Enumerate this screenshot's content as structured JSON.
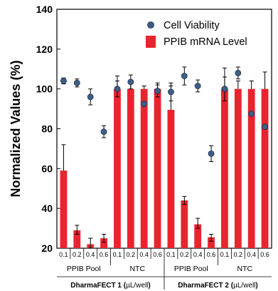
{
  "chart_data": {
    "type": "bar",
    "ylabel": "Normalized Values (%)",
    "ylim": [
      20,
      140
    ],
    "yticks": [
      "20",
      "40",
      "60",
      "80",
      "100",
      "120",
      "140"
    ],
    "categories": [
      "0.1",
      "0.2",
      "0.4",
      "0.6",
      "0.1",
      "0.2",
      "0.4",
      "0.6",
      "0.1",
      "0.2",
      "0.4",
      "0.6",
      "0.1",
      "0.2",
      "0.4",
      "0.6"
    ],
    "groups": [
      {
        "label": "PPIB Pool",
        "super": 0
      },
      {
        "label": "NTC",
        "super": 0
      },
      {
        "label": "PPIB Pool",
        "super": 1
      },
      {
        "label": "NTC",
        "super": 1
      }
    ],
    "super_groups": [
      {
        "prefix": "DharmaFECT 1 (",
        "unit": "µL/well",
        "suffix": ")"
      },
      {
        "prefix": "DharmaFECT 2 (",
        "unit": "µL/well",
        "suffix": ")"
      }
    ],
    "series": [
      {
        "name": "PPIB mRNA Level",
        "kind": "bar",
        "color": "#e8252f",
        "values": [
          59,
          29,
          22,
          25,
          100,
          100,
          100,
          100,
          89.5,
          44,
          32,
          25.5,
          100,
          100,
          100,
          100
        ],
        "err_high": [
          13,
          2.5,
          3,
          2,
          6.5,
          4,
          1.5,
          3,
          12,
          2,
          3,
          1.5,
          10.5,
          4,
          4,
          8.5
        ],
        "err_low": [
          0,
          2,
          2,
          2,
          0,
          0,
          0,
          0,
          0,
          2,
          2,
          2,
          0,
          0,
          0,
          0
        ]
      },
      {
        "name": "Cell Viability",
        "kind": "marker",
        "color": "#3d5f87",
        "values": [
          104,
          103,
          96,
          78.5,
          100,
          103.5,
          92.5,
          99,
          98.5,
          106.5,
          101.5,
          67.5,
          100,
          108,
          87.5,
          81
        ],
        "err": [
          1.5,
          2,
          4,
          3,
          4,
          3.5,
          0,
          3,
          4.5,
          4.5,
          3,
          4,
          6,
          3,
          0,
          0
        ]
      }
    ],
    "legend": {
      "position": "top-right",
      "entries": [
        "Cell Viability",
        "PPIB mRNA Level"
      ]
    },
    "grid": false
  }
}
